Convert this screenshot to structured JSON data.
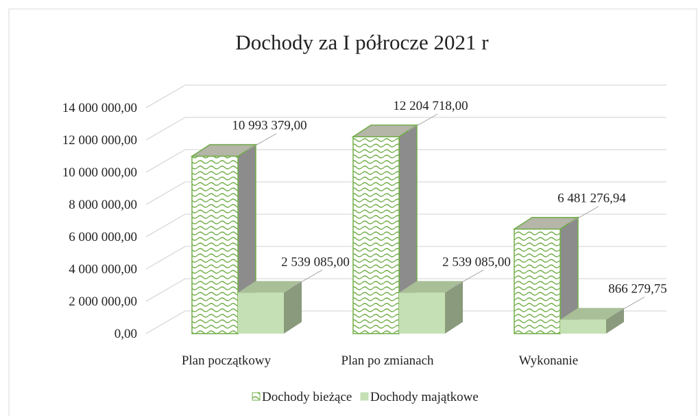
{
  "chart_data": {
    "type": "bar3d",
    "title": "Dochody za I półrocze 2021 r",
    "categories": [
      "Plan początkowy",
      "Plan po zmianach",
      "Wykonanie"
    ],
    "series": [
      {
        "name": "Dochody bieżące",
        "color": "#70ad47",
        "values": [
          10993379,
          12204718,
          6481276.94
        ],
        "value_labels": [
          "10 993 379,00",
          "12 204 718,00",
          "6 481 276,94"
        ]
      },
      {
        "name": "Dochody majątkowe",
        "color": "#c5e0b4",
        "values": [
          2539085,
          2539085,
          866279.75
        ],
        "value_labels": [
          "2 539 085,00",
          "2 539 085,00",
          "866 279,75"
        ]
      }
    ],
    "ylim": [
      0,
      14000000
    ],
    "yticks": [
      {
        "value": 0,
        "label": "0,00"
      },
      {
        "value": 2000000,
        "label": "2 000 000,00"
      },
      {
        "value": 4000000,
        "label": "4 000 000,00"
      },
      {
        "value": 6000000,
        "label": "6 000 000,00"
      },
      {
        "value": 8000000,
        "label": "8 000 000,00"
      },
      {
        "value": 10000000,
        "label": "10 000 000,00"
      },
      {
        "value": 12000000,
        "label": "12 000 000,00"
      },
      {
        "value": 14000000,
        "label": "14 000 000,00"
      }
    ],
    "grid": true,
    "legend": "bottom"
  }
}
